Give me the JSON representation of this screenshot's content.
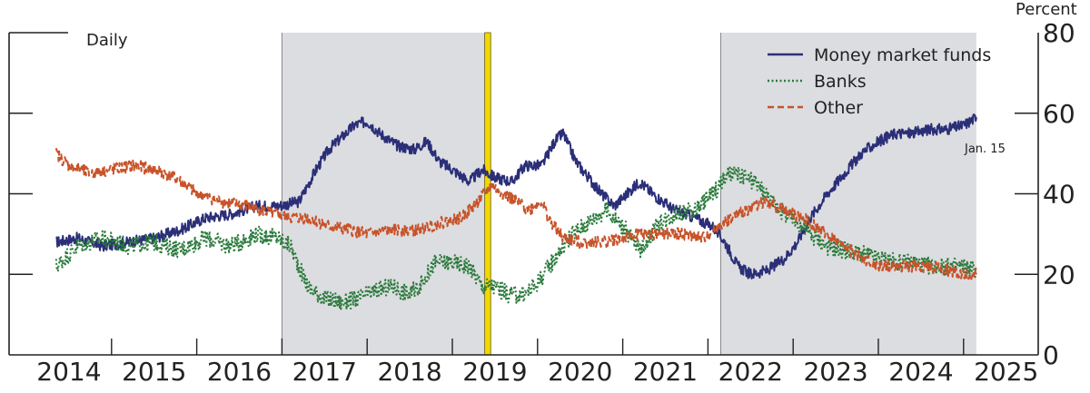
{
  "chart_data": {
    "type": "line",
    "frequency_label": "Daily",
    "y_unit_label": "Percent",
    "xlim": [
      2014.0,
      2025.4
    ],
    "ylim": [
      0,
      80
    ],
    "x_ticks": [
      "2014",
      "2015",
      "2016",
      "2017",
      "2018",
      "2019",
      "2020",
      "2021",
      "2022",
      "2023",
      "2024",
      "2025"
    ],
    "y_ticks": [
      0,
      20,
      40,
      60,
      80
    ],
    "last_obs_label": "Jan. 15",
    "shaded_periods": [
      {
        "start": 2017.0,
        "end": 2019.4,
        "color": "#dcdde0"
      },
      {
        "start": 2022.15,
        "end": 2025.15,
        "color": "#dcdde0"
      }
    ],
    "highlight_band": {
      "start": 2019.38,
      "end": 2019.45,
      "color": "#f0d800"
    },
    "series": [
      {
        "name": "Money market funds",
        "color": "#2b2f78",
        "dash": "solid",
        "points": [
          [
            2014.35,
            28
          ],
          [
            2014.6,
            29
          ],
          [
            2014.9,
            27
          ],
          [
            2015.2,
            28
          ],
          [
            2015.5,
            29
          ],
          [
            2015.8,
            31
          ],
          [
            2016.1,
            34
          ],
          [
            2016.4,
            35
          ],
          [
            2016.7,
            37
          ],
          [
            2016.95,
            37
          ],
          [
            2017.2,
            38
          ],
          [
            2017.4,
            46
          ],
          [
            2017.55,
            51
          ],
          [
            2017.7,
            54
          ],
          [
            2017.85,
            57
          ],
          [
            2018.0,
            58
          ],
          [
            2018.15,
            55
          ],
          [
            2018.35,
            52
          ],
          [
            2018.55,
            51
          ],
          [
            2018.7,
            53
          ],
          [
            2018.85,
            48
          ],
          [
            2019.0,
            46
          ],
          [
            2019.2,
            43
          ],
          [
            2019.35,
            46
          ],
          [
            2019.5,
            44
          ],
          [
            2019.7,
            43
          ],
          [
            2019.85,
            47
          ],
          [
            2020.05,
            47
          ],
          [
            2020.2,
            53
          ],
          [
            2020.3,
            55
          ],
          [
            2020.45,
            48
          ],
          [
            2020.6,
            44
          ],
          [
            2020.75,
            40
          ],
          [
            2020.9,
            37
          ],
          [
            2021.05,
            40
          ],
          [
            2021.2,
            43
          ],
          [
            2021.35,
            40
          ],
          [
            2021.6,
            36
          ],
          [
            2021.85,
            34
          ],
          [
            2022.05,
            32
          ],
          [
            2022.2,
            28
          ],
          [
            2022.35,
            22
          ],
          [
            2022.5,
            20
          ],
          [
            2022.7,
            21
          ],
          [
            2022.9,
            24
          ],
          [
            2023.05,
            28
          ],
          [
            2023.2,
            34
          ],
          [
            2023.4,
            40
          ],
          [
            2023.6,
            45
          ],
          [
            2023.8,
            50
          ],
          [
            2024.0,
            53
          ],
          [
            2024.2,
            55
          ],
          [
            2024.4,
            55
          ],
          [
            2024.6,
            56
          ],
          [
            2024.8,
            56
          ],
          [
            2025.0,
            57
          ],
          [
            2025.15,
            59
          ]
        ]
      },
      {
        "name": "Banks",
        "color": "#2a7a3b",
        "dash": "dotted",
        "points": [
          [
            2014.35,
            22
          ],
          [
            2014.6,
            27
          ],
          [
            2014.9,
            29
          ],
          [
            2015.2,
            27
          ],
          [
            2015.5,
            28
          ],
          [
            2015.8,
            26
          ],
          [
            2016.1,
            29
          ],
          [
            2016.4,
            27
          ],
          [
            2016.7,
            30
          ],
          [
            2016.95,
            29
          ],
          [
            2017.1,
            27
          ],
          [
            2017.3,
            17
          ],
          [
            2017.5,
            14
          ],
          [
            2017.7,
            13
          ],
          [
            2017.9,
            14
          ],
          [
            2018.1,
            16
          ],
          [
            2018.3,
            17
          ],
          [
            2018.5,
            15
          ],
          [
            2018.65,
            18
          ],
          [
            2018.8,
            23
          ],
          [
            2019.0,
            23
          ],
          [
            2019.2,
            22
          ],
          [
            2019.35,
            17
          ],
          [
            2019.5,
            17
          ],
          [
            2019.65,
            15
          ],
          [
            2019.85,
            15
          ],
          [
            2020.0,
            18
          ],
          [
            2020.2,
            24
          ],
          [
            2020.4,
            30
          ],
          [
            2020.6,
            33
          ],
          [
            2020.8,
            36
          ],
          [
            2021.0,
            32
          ],
          [
            2021.2,
            26
          ],
          [
            2021.4,
            32
          ],
          [
            2021.6,
            35
          ],
          [
            2021.85,
            36
          ],
          [
            2022.05,
            40
          ],
          [
            2022.25,
            45
          ],
          [
            2022.45,
            44
          ],
          [
            2022.6,
            42
          ],
          [
            2022.75,
            38
          ],
          [
            2022.9,
            35
          ],
          [
            2023.05,
            33
          ],
          [
            2023.2,
            30
          ],
          [
            2023.4,
            27
          ],
          [
            2023.6,
            26
          ],
          [
            2023.8,
            25
          ],
          [
            2024.0,
            24
          ],
          [
            2024.2,
            23
          ],
          [
            2024.4,
            23
          ],
          [
            2024.6,
            22
          ],
          [
            2024.8,
            22
          ],
          [
            2025.0,
            22
          ],
          [
            2025.15,
            21
          ]
        ]
      },
      {
        "name": "Other",
        "color": "#c8532a",
        "dash": "dashed",
        "points": [
          [
            2014.35,
            50
          ],
          [
            2014.5,
            47
          ],
          [
            2014.75,
            45
          ],
          [
            2015.0,
            46
          ],
          [
            2015.25,
            47
          ],
          [
            2015.5,
            46
          ],
          [
            2015.75,
            44
          ],
          [
            2016.0,
            40
          ],
          [
            2016.3,
            38
          ],
          [
            2016.6,
            37
          ],
          [
            2016.9,
            35
          ],
          [
            2017.1,
            34
          ],
          [
            2017.3,
            34
          ],
          [
            2017.55,
            32
          ],
          [
            2017.8,
            31
          ],
          [
            2018.0,
            30
          ],
          [
            2018.3,
            31
          ],
          [
            2018.6,
            31
          ],
          [
            2018.9,
            33
          ],
          [
            2019.1,
            34
          ],
          [
            2019.3,
            38
          ],
          [
            2019.45,
            42
          ],
          [
            2019.6,
            40
          ],
          [
            2019.75,
            38
          ],
          [
            2019.9,
            36
          ],
          [
            2020.05,
            38
          ],
          [
            2020.15,
            33
          ],
          [
            2020.3,
            29
          ],
          [
            2020.5,
            28
          ],
          [
            2020.75,
            28
          ],
          [
            2021.0,
            29
          ],
          [
            2021.2,
            30
          ],
          [
            2021.45,
            30
          ],
          [
            2021.7,
            30
          ],
          [
            2021.95,
            29
          ],
          [
            2022.2,
            33
          ],
          [
            2022.45,
            36
          ],
          [
            2022.65,
            38
          ],
          [
            2022.8,
            37
          ],
          [
            2023.0,
            35
          ],
          [
            2023.2,
            33
          ],
          [
            2023.4,
            30
          ],
          [
            2023.6,
            27
          ],
          [
            2023.8,
            24
          ],
          [
            2024.0,
            22
          ],
          [
            2024.2,
            22
          ],
          [
            2024.4,
            22
          ],
          [
            2024.6,
            22
          ],
          [
            2024.8,
            21
          ],
          [
            2025.0,
            20
          ],
          [
            2025.15,
            20
          ]
        ]
      }
    ]
  }
}
